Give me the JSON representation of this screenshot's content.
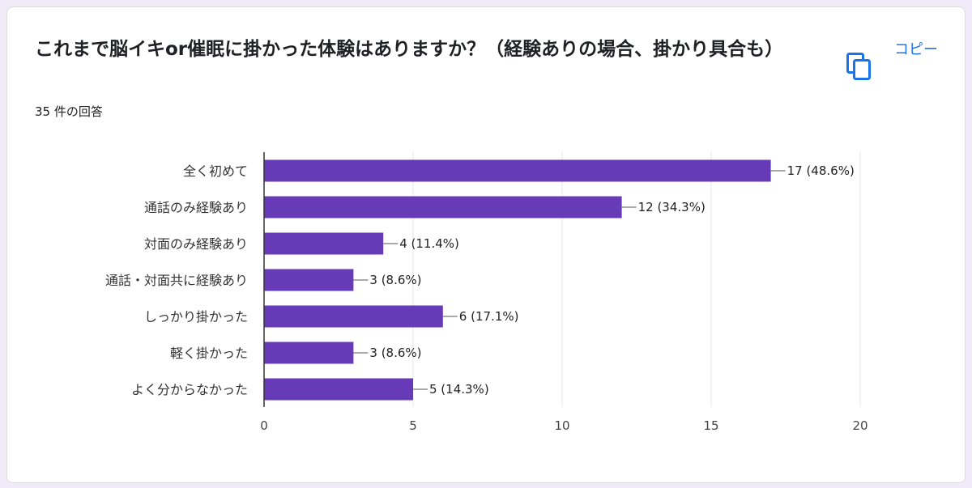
{
  "header": {
    "title": "これまで脳イキor催眠に掛かった体験はありますか？（経験ありの場合、掛かり具合も）",
    "response_count": "35 件の回答",
    "copy_label": "コピー"
  },
  "colors": {
    "bar": "#673ab7",
    "accent": "#1a73e8",
    "background": "#f0ebf8"
  },
  "icons": {
    "copy": "copy-icon"
  },
  "chart_data": {
    "type": "bar",
    "orientation": "horizontal",
    "categories": [
      "全く初めて",
      "通話のみ経験あり",
      "対面のみ経験あり",
      "通話・対面共に経験あり",
      "しっかり掛かった",
      "軽く掛かった",
      "よく分からなかった"
    ],
    "values": [
      17,
      12,
      4,
      3,
      6,
      3,
      5
    ],
    "value_labels": [
      "17 (48.6%)",
      "12 (34.3%)",
      "4 (11.4%)",
      "3 (8.6%)",
      "6 (17.1%)",
      "3 (8.6%)",
      "5 (14.3%)"
    ],
    "xlim": [
      0,
      20
    ],
    "xticks": [
      0,
      5,
      10,
      15,
      20
    ],
    "grid": true
  }
}
